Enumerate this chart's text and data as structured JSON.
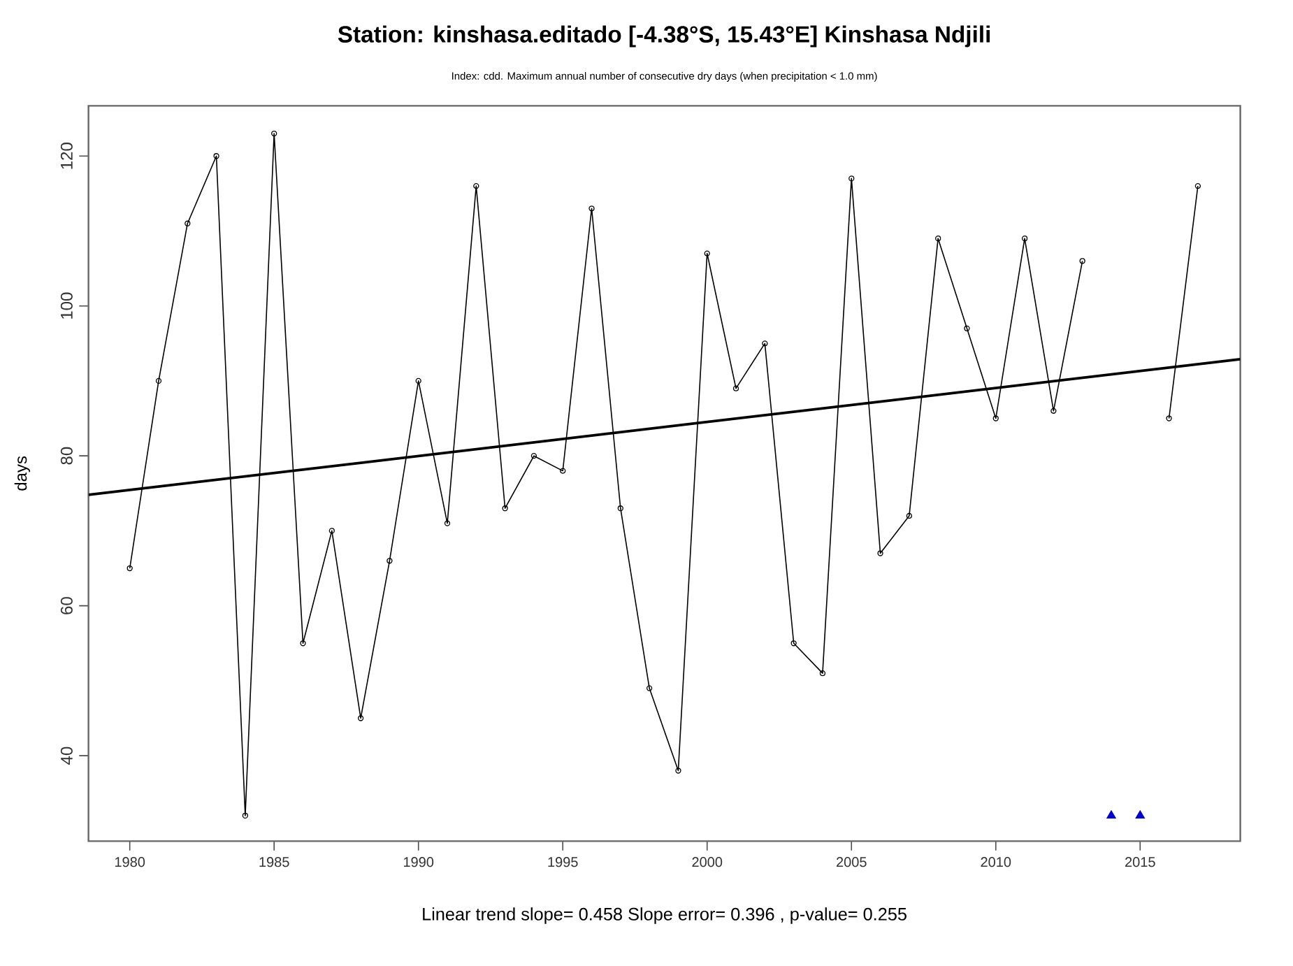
{
  "chart_data": {
    "type": "line",
    "title": "Station: kinshasa.editado [-4.38°S, 15.43°E] Kinshasa Ndjili",
    "subtitle": "Index: cdd. Maximum annual number of consecutive dry days (when precipitation < 1.0 mm)",
    "ylabel": "days",
    "annotations": [
      "Linear trend slope= 0.458    Slope error= 0.396 ,   p-value= 0.255"
    ],
    "x": [
      1980,
      1981,
      1982,
      1983,
      1984,
      1985,
      1986,
      1987,
      1988,
      1989,
      1990,
      1991,
      1992,
      1993,
      1994,
      1995,
      1996,
      1997,
      1998,
      1999,
      2000,
      2001,
      2002,
      2003,
      2004,
      2005,
      2006,
      2007,
      2008,
      2009,
      2010,
      2011,
      2012,
      2013,
      2014,
      2015,
      2016,
      2017
    ],
    "series": [
      {
        "color": "#000000",
        "values": [
          65,
          90,
          111,
          120,
          32,
          123,
          55,
          70,
          45,
          66,
          90,
          71,
          116,
          73,
          80,
          78,
          113,
          73,
          49,
          38,
          107,
          89,
          95,
          55,
          51,
          117,
          67,
          72,
          109,
          97,
          85,
          109,
          86,
          106,
          null,
          null,
          85,
          116
        ]
      },
      {
        "type": "line",
        "marker": "none",
        "color": "#000000",
        "x": [
          1978.57,
          2018.47
        ],
        "values": [
          74.8,
          92.9
        ]
      },
      {
        "type": "scatter",
        "marker": "triangle",
        "color": "#0000cc",
        "x": [
          2014,
          2015
        ],
        "values": [
          32,
          32
        ]
      }
    ],
    "marker": "circle",
    "xlim": [
      1978.57,
      2018.47
    ],
    "ylim": [
      28.6,
      126.7
    ],
    "xticks": [
      1980,
      1985,
      1990,
      1995,
      2000,
      2005,
      2010,
      2015
    ],
    "yticks": [
      40,
      60,
      80,
      100,
      120
    ],
    "grid": false
  }
}
